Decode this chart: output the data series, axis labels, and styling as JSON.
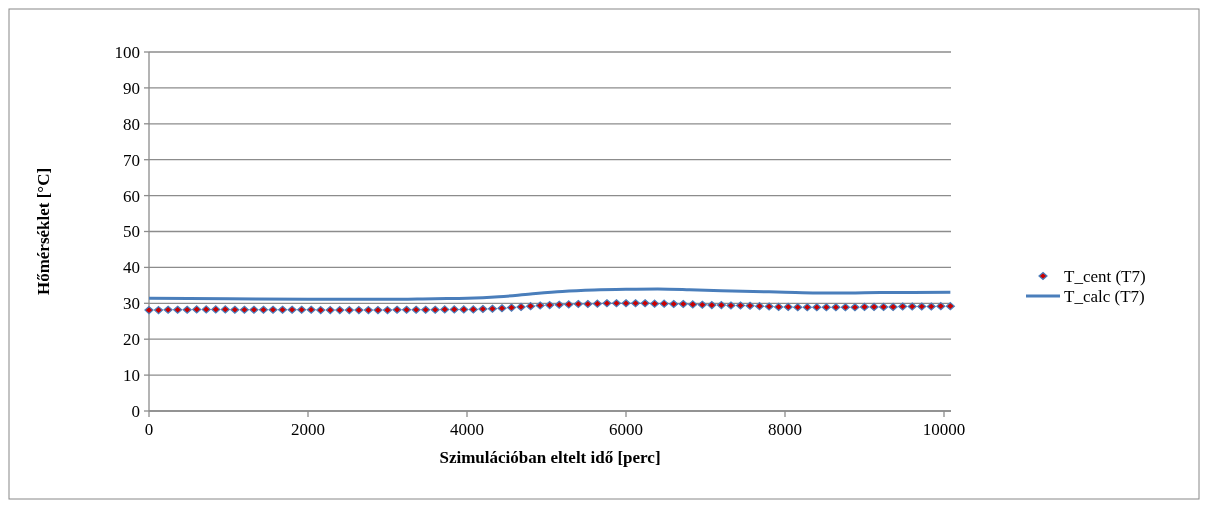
{
  "chart_data": {
    "type": "scatter",
    "xlabel": "Szimulációban eltelt idő [perc]",
    "ylabel": "Hőmérséklet [°C]",
    "x": [
      0,
      120,
      240,
      360,
      480,
      600,
      720,
      840,
      960,
      1080,
      1200,
      1320,
      1440,
      1560,
      1680,
      1800,
      1920,
      2040,
      2160,
      2280,
      2400,
      2520,
      2640,
      2760,
      2880,
      3000,
      3120,
      3240,
      3360,
      3480,
      3600,
      3720,
      3840,
      3960,
      4080,
      4200,
      4320,
      4440,
      4560,
      4680,
      4800,
      4920,
      5040,
      5160,
      5280,
      5400,
      5520,
      5640,
      5760,
      5880,
      6000,
      6120,
      6240,
      6360,
      6480,
      6600,
      6720,
      6840,
      6960,
      7080,
      7200,
      7320,
      7440,
      7560,
      7680,
      7800,
      7920,
      8040,
      8160,
      8280,
      8400,
      8520,
      8640,
      8760,
      8880,
      9000,
      9120,
      9240,
      9360,
      9480,
      9600,
      9720,
      9840,
      9960,
      10080
    ],
    "series": [
      {
        "name": "T_cent (T7)",
        "marker": "diamond",
        "color": "#cc0000",
        "values": [
          28.1,
          28.1,
          28.2,
          28.2,
          28.2,
          28.3,
          28.3,
          28.3,
          28.3,
          28.2,
          28.2,
          28.2,
          28.2,
          28.2,
          28.2,
          28.2,
          28.2,
          28.2,
          28.1,
          28.1,
          28.1,
          28.1,
          28.1,
          28.1,
          28.1,
          28.1,
          28.2,
          28.2,
          28.2,
          28.2,
          28.2,
          28.3,
          28.3,
          28.3,
          28.3,
          28.4,
          28.5,
          28.6,
          28.8,
          29.0,
          29.2,
          29.4,
          29.5,
          29.6,
          29.7,
          29.8,
          29.8,
          29.9,
          30.0,
          30.0,
          30.0,
          30.0,
          30.0,
          29.9,
          29.9,
          29.8,
          29.8,
          29.7,
          29.6,
          29.5,
          29.5,
          29.4,
          29.4,
          29.3,
          29.2,
          29.1,
          29.0,
          29.0,
          28.9,
          28.9,
          28.9,
          28.9,
          28.9,
          28.9,
          28.9,
          29.0,
          29.0,
          29.0,
          29.0,
          29.1,
          29.1,
          29.1,
          29.1,
          29.2,
          29.2
        ]
      },
      {
        "name": "T_calc (T7)",
        "type": "line",
        "marker": "none",
        "color": "#4a7ebb",
        "x": [
          0,
          1000,
          2000,
          3000,
          3600,
          4000,
          4400,
          4800,
          5200,
          5600,
          6000,
          6400,
          6800,
          7200,
          7600,
          8000,
          8400,
          8800,
          9200,
          9600,
          10080
        ],
        "values": [
          31.4,
          31.3,
          31.1,
          31.1,
          31.3,
          31.4,
          31.8,
          32.6,
          33.3,
          33.7,
          33.9,
          34.0,
          33.8,
          33.5,
          33.3,
          33.1,
          32.9,
          32.9,
          33.0,
          33.0,
          33.1
        ]
      }
    ],
    "xlim": [
      0,
      10088
    ],
    "xticks": [
      0,
      2000,
      4000,
      6000,
      8000,
      10000
    ],
    "ylim": [
      0,
      100
    ],
    "yticks": [
      0,
      10,
      20,
      30,
      40,
      50,
      60,
      70,
      80,
      90,
      100
    ],
    "grid": "y",
    "legend": "right"
  }
}
